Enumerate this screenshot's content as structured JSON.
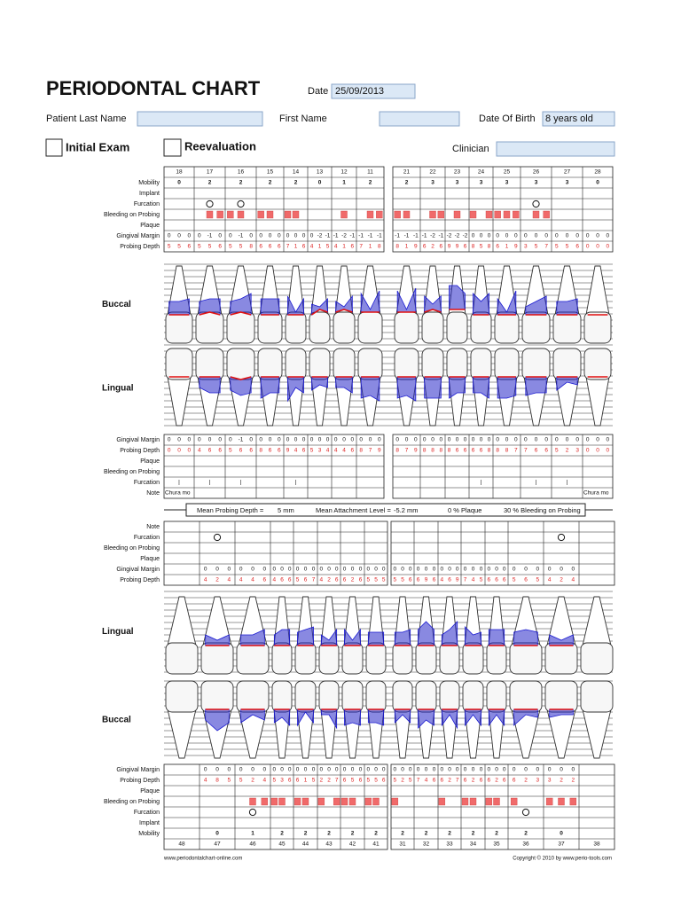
{
  "header": {
    "title": "PERIODONTAL CHART",
    "date_label": "Date",
    "date": "25/09/2013",
    "last_name_label": "Patient Last Name",
    "first_name_label": "First Name",
    "dob_label": "Date Of Birth",
    "dob": "8 years old",
    "initial_exam": "Initial Exam",
    "reevaluation": "Reevaluation",
    "clinician_label": "Clinician"
  },
  "upper": {
    "teeth": [
      18,
      17,
      16,
      15,
      14,
      13,
      12,
      11,
      21,
      22,
      23,
      24,
      25,
      26,
      27,
      28
    ],
    "buccal_title": "Buccal",
    "lingual_title": "Lingual",
    "buccal_labels": [
      "Mobility",
      "Implant",
      "Furcation",
      "Bleeding on Probing",
      "Plaque",
      "Gingival Margin",
      "Probing Depth"
    ],
    "lingual_labels": [
      "Gingival Margin",
      "Probing Depth",
      "Plaque",
      "Bleeding on Probing",
      "Furcation",
      "Note"
    ],
    "mobility": [
      0,
      2,
      2,
      2,
      2,
      0,
      1,
      2,
      2,
      3,
      3,
      3,
      3,
      3,
      3,
      0
    ],
    "furcation_buccal": [
      false,
      true,
      true,
      false,
      false,
      false,
      false,
      false,
      false,
      false,
      false,
      false,
      false,
      true,
      false,
      false
    ],
    "bleeding_buccal": [
      [
        false,
        false,
        false
      ],
      [
        false,
        true,
        true
      ],
      [
        true,
        true,
        false
      ],
      [
        true,
        true,
        false
      ],
      [
        true,
        true,
        false
      ],
      [
        false,
        false,
        false
      ],
      [
        false,
        true,
        false
      ],
      [
        false,
        true,
        true
      ],
      [
        true,
        true,
        false
      ],
      [
        false,
        true,
        true
      ],
      [
        false,
        true,
        false
      ],
      [
        true,
        false,
        true
      ],
      [
        true,
        true,
        true
      ],
      [
        false,
        true,
        true
      ],
      [
        false,
        false,
        false
      ],
      [
        false,
        false,
        false
      ]
    ],
    "gm_buccal": [
      [
        0,
        0,
        0
      ],
      [
        0,
        -1,
        0
      ],
      [
        0,
        -1,
        0
      ],
      [
        0,
        0,
        0
      ],
      [
        0,
        0,
        0
      ],
      [
        0,
        -2,
        -1
      ],
      [
        -1,
        -2,
        -1
      ],
      [
        -1,
        -1,
        -1
      ],
      [
        -1,
        -1,
        -1
      ],
      [
        -1,
        -2,
        -1
      ],
      [
        -2,
        -2,
        -2
      ],
      [
        0,
        0,
        0
      ],
      [
        0,
        0,
        0
      ],
      [
        0,
        0,
        0
      ],
      [
        0,
        0,
        0
      ],
      [
        0,
        0,
        0
      ]
    ],
    "pd_buccal": [
      [
        5,
        5,
        6
      ],
      [
        5,
        5,
        6
      ],
      [
        5,
        5,
        8
      ],
      [
        6,
        6,
        6
      ],
      [
        7,
        1,
        6
      ],
      [
        4,
        1,
        5
      ],
      [
        4,
        1,
        6
      ],
      [
        7,
        1,
        8
      ],
      [
        8,
        1,
        9
      ],
      [
        6,
        2,
        6
      ],
      [
        9,
        9,
        6
      ],
      [
        8,
        5,
        8
      ],
      [
        6,
        1,
        9
      ],
      [
        3,
        5,
        7
      ],
      [
        5,
        5,
        6
      ],
      [
        0,
        0,
        0
      ]
    ],
    "gm_lingual": [
      [
        0,
        0,
        0
      ],
      [
        0,
        0,
        0
      ],
      [
        0,
        -1,
        0
      ],
      [
        0,
        0,
        0
      ],
      [
        0,
        0,
        0
      ],
      [
        0,
        0,
        0
      ],
      [
        0,
        0,
        0
      ],
      [
        0,
        0,
        0
      ],
      [
        0,
        0,
        0
      ],
      [
        0,
        0,
        0
      ],
      [
        0,
        0,
        0
      ],
      [
        0,
        0,
        0
      ],
      [
        0,
        0,
        0
      ],
      [
        0,
        0,
        0
      ],
      [
        0,
        0,
        0
      ],
      [
        0,
        0,
        0
      ]
    ],
    "pd_lingual": [
      [
        0,
        0,
        0
      ],
      [
        4,
        6,
        6
      ],
      [
        5,
        6,
        6
      ],
      [
        8,
        6,
        6
      ],
      [
        9,
        4,
        6
      ],
      [
        5,
        3,
        4
      ],
      [
        4,
        4,
        6
      ],
      [
        8,
        7,
        9
      ],
      [
        8,
        7,
        9
      ],
      [
        8,
        8,
        8
      ],
      [
        8,
        6,
        6
      ],
      [
        6,
        6,
        8
      ],
      [
        8,
        8,
        7
      ],
      [
        7,
        6,
        6
      ],
      [
        5,
        2,
        3
      ],
      [
        0,
        0,
        0
      ]
    ],
    "furcation_lingual": [
      "|",
      "|",
      "|",
      null,
      "|",
      null,
      null,
      null,
      null,
      null,
      null,
      "|",
      null,
      "|",
      "|",
      null
    ],
    "notes": [
      "Chura mo",
      null,
      null,
      null,
      null,
      null,
      null,
      null,
      null,
      null,
      null,
      null,
      null,
      null,
      null,
      "Chura mo"
    ]
  },
  "summary": {
    "mean_pd_label": "Mean Probing Depth =",
    "mean_pd": "5 mm",
    "mean_al_label": "Mean Attachment Level =",
    "mean_al": "-5.2 mm",
    "plaque": "0 % Plaque",
    "bleeding": "30 % Bleeding on Probing"
  },
  "lower": {
    "teeth": [
      48,
      47,
      46,
      45,
      44,
      43,
      42,
      41,
      31,
      32,
      33,
      34,
      35,
      36,
      37,
      38
    ],
    "lingual_title": "Lingual",
    "buccal_title": "Buccal",
    "lingual_labels": [
      "Note",
      "Furcation",
      "Bleeding on Probing",
      "Plaque",
      "Gingival Margin",
      "Probing Depth"
    ],
    "buccal_labels": [
      "Gingival Margin",
      "Probing Depth",
      "Plaque",
      "Bleeding on Probing",
      "Furcation",
      "Implant",
      "Mobility"
    ],
    "furcation_lingual": [
      false,
      true,
      false,
      false,
      false,
      false,
      false,
      false,
      false,
      false,
      false,
      false,
      false,
      false,
      true,
      false
    ],
    "gm_lingual": [
      null,
      [
        0,
        0,
        0
      ],
      [
        0,
        0,
        0
      ],
      [
        0,
        0,
        0
      ],
      [
        0,
        0,
        0
      ],
      [
        0,
        0,
        0
      ],
      [
        0,
        0,
        0
      ],
      [
        0,
        0,
        0
      ],
      [
        0,
        0,
        0
      ],
      [
        0,
        0,
        0
      ],
      [
        0,
        0,
        0
      ],
      [
        0,
        0,
        0
      ],
      [
        0,
        0,
        0
      ],
      [
        0,
        0,
        0
      ],
      [
        0,
        0,
        0
      ],
      null
    ],
    "pd_lingual": [
      null,
      [
        4,
        2,
        4
      ],
      [
        4,
        4,
        6
      ],
      [
        4,
        6,
        6
      ],
      [
        5,
        6,
        7
      ],
      [
        4,
        2,
        6
      ],
      [
        6,
        2,
        6
      ],
      [
        5,
        5,
        5
      ],
      [
        5,
        5,
        6
      ],
      [
        6,
        9,
        6
      ],
      [
        4,
        6,
        9
      ],
      [
        7,
        4,
        5
      ],
      [
        6,
        6,
        6
      ],
      [
        5,
        6,
        5
      ],
      [
        4,
        2,
        4
      ],
      null
    ],
    "gm_buccal": [
      null,
      [
        0,
        0,
        0
      ],
      [
        0,
        0,
        0
      ],
      [
        0,
        0,
        0
      ],
      [
        0,
        0,
        0
      ],
      [
        0,
        0,
        0
      ],
      [
        0,
        0,
        0
      ],
      [
        0,
        0,
        0
      ],
      [
        0,
        0,
        0
      ],
      [
        0,
        0,
        0
      ],
      [
        0,
        0,
        0
      ],
      [
        0,
        0,
        0
      ],
      [
        0,
        0,
        0
      ],
      [
        0,
        0,
        0
      ],
      [
        0,
        0,
        0
      ],
      null
    ],
    "pd_buccal": [
      null,
      [
        4,
        8,
        5
      ],
      [
        5,
        2,
        4
      ],
      [
        5,
        3,
        6
      ],
      [
        6,
        1,
        5
      ],
      [
        2,
        2,
        7
      ],
      [
        6,
        5,
        6
      ],
      [
        5,
        5,
        6
      ],
      [
        5,
        2,
        5
      ],
      [
        7,
        4,
        6
      ],
      [
        6,
        2,
        7
      ],
      [
        6,
        2,
        6
      ],
      [
        6,
        2,
        6
      ],
      [
        6,
        2,
        3
      ],
      [
        3,
        2,
        2
      ],
      null
    ],
    "bleeding_buccal": [
      [
        false,
        false,
        false
      ],
      [
        false,
        false,
        false
      ],
      [
        false,
        true,
        true
      ],
      [
        true,
        true,
        false
      ],
      [
        true,
        true,
        false
      ],
      [
        true,
        false,
        true
      ],
      [
        true,
        true,
        false
      ],
      [
        true,
        true,
        false
      ],
      [
        true,
        false,
        false
      ],
      [
        false,
        false,
        false
      ],
      [
        true,
        false,
        false
      ],
      [
        true,
        true,
        false
      ],
      [
        true,
        true,
        false
      ],
      [
        true,
        false,
        false
      ],
      [
        true,
        true,
        true
      ],
      [
        false,
        false,
        false
      ]
    ],
    "furcation_buccal": [
      false,
      false,
      true,
      false,
      false,
      false,
      false,
      false,
      false,
      false,
      false,
      false,
      false,
      true,
      false,
      false
    ],
    "mobility": [
      null,
      0,
      1,
      2,
      2,
      2,
      2,
      2,
      2,
      2,
      2,
      2,
      2,
      2,
      0,
      null
    ]
  },
  "footer": {
    "left": "www.periodontalchart-online.com",
    "right": "Copyright © 2010 by www.perio-tools.com"
  }
}
